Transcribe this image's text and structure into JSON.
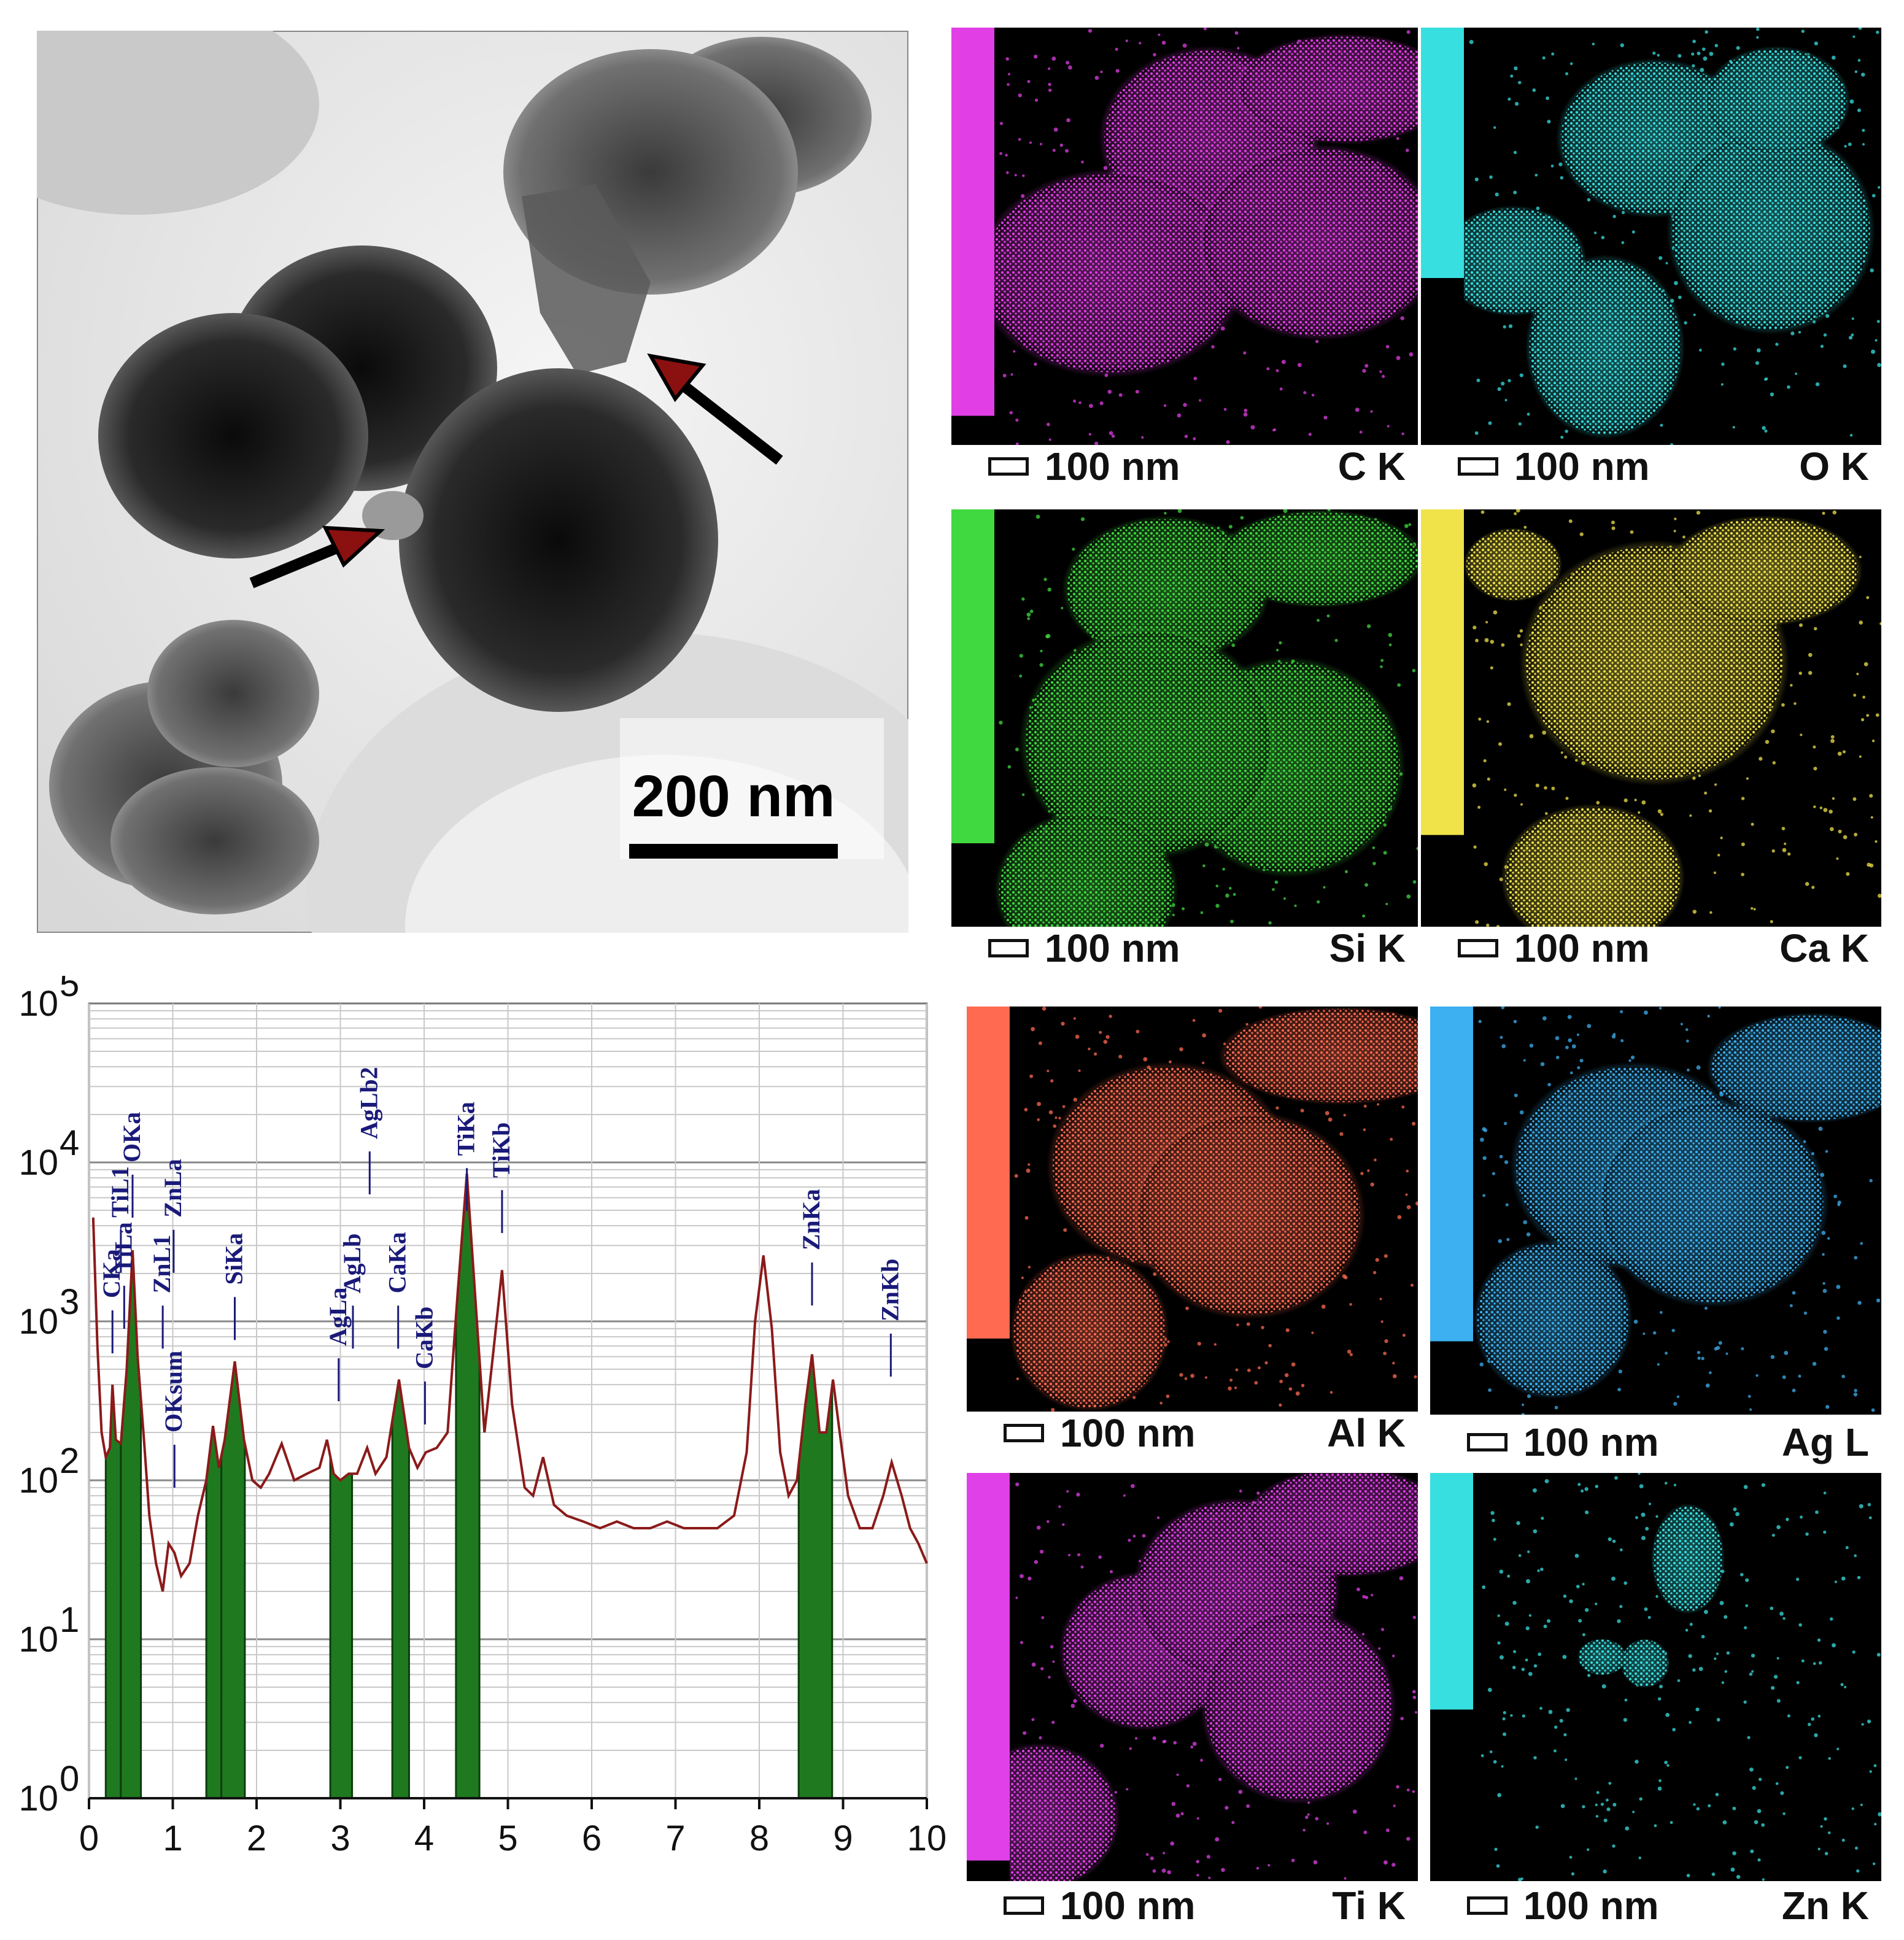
{
  "tem_image": {
    "scale_bar_label": "200 nm"
  },
  "maps": [
    {
      "element": "C K",
      "scale": "100 nm",
      "color": "#e23ee6"
    },
    {
      "element": "O K",
      "scale": "100 nm",
      "color": "#38dfe0"
    },
    {
      "element": "Si K",
      "scale": "100 nm",
      "color": "#40d940"
    },
    {
      "element": "Ca K",
      "scale": "100 nm",
      "color": "#f0e34a"
    },
    {
      "element": "Al K",
      "scale": "100 nm",
      "color": "#ff6a50"
    },
    {
      "element": "Ag L",
      "scale": "100 nm",
      "color": "#3cb0f0"
    },
    {
      "element": "Ti K",
      "scale": "100 nm",
      "color": "#e040e8"
    },
    {
      "element": "Zn K",
      "scale": "100 nm",
      "color": "#38dfe0"
    }
  ],
  "chart_data": {
    "type": "line",
    "xlim": [
      0,
      10
    ],
    "x_ticks": [
      "0",
      "1",
      "2",
      "3",
      "4",
      "5",
      "6",
      "7",
      "8",
      "9",
      "10"
    ],
    "y_scale": "log",
    "ylim": [
      1,
      100000
    ],
    "y_ticks": [
      {
        "base": "10",
        "exp": "0"
      },
      {
        "base": "10",
        "exp": "1"
      },
      {
        "base": "10",
        "exp": "2"
      },
      {
        "base": "10",
        "exp": "3"
      },
      {
        "base": "10",
        "exp": "4"
      },
      {
        "base": "10",
        "exp": "5"
      }
    ],
    "grid": true,
    "line_color": "#8b1a1a",
    "fill_color": "#1f7a1f",
    "spectrum": [
      [
        0.05,
        4500
      ],
      [
        0.1,
        700
      ],
      [
        0.15,
        200
      ],
      [
        0.2,
        140
      ],
      [
        0.25,
        160
      ],
      [
        0.28,
        400
      ],
      [
        0.32,
        180
      ],
      [
        0.38,
        170
      ],
      [
        0.45,
        500
      ],
      [
        0.52,
        2800
      ],
      [
        0.58,
        600
      ],
      [
        0.65,
        200
      ],
      [
        0.72,
        60
      ],
      [
        0.8,
        30
      ],
      [
        0.88,
        20
      ],
      [
        0.95,
        40
      ],
      [
        1.02,
        35
      ],
      [
        1.1,
        25
      ],
      [
        1.2,
        30
      ],
      [
        1.3,
        60
      ],
      [
        1.4,
        100
      ],
      [
        1.48,
        220
      ],
      [
        1.55,
        120
      ],
      [
        1.62,
        180
      ],
      [
        1.74,
        560
      ],
      [
        1.85,
        180
      ],
      [
        1.95,
        100
      ],
      [
        2.05,
        90
      ],
      [
        2.15,
        110
      ],
      [
        2.3,
        170
      ],
      [
        2.45,
        100
      ],
      [
        2.6,
        110
      ],
      [
        2.75,
        120
      ],
      [
        2.84,
        180
      ],
      [
        2.92,
        110
      ],
      [
        3.0,
        100
      ],
      [
        3.1,
        110
      ],
      [
        3.2,
        110
      ],
      [
        3.32,
        160
      ],
      [
        3.42,
        110
      ],
      [
        3.55,
        140
      ],
      [
        3.7,
        430
      ],
      [
        3.82,
        160
      ],
      [
        3.92,
        120
      ],
      [
        4.02,
        150
      ],
      [
        4.15,
        160
      ],
      [
        4.28,
        200
      ],
      [
        4.4,
        1500
      ],
      [
        4.51,
        8500
      ],
      [
        4.62,
        1200
      ],
      [
        4.72,
        200
      ],
      [
        4.82,
        600
      ],
      [
        4.93,
        2100
      ],
      [
        5.05,
        300
      ],
      [
        5.2,
        90
      ],
      [
        5.3,
        80
      ],
      [
        5.42,
        140
      ],
      [
        5.55,
        70
      ],
      [
        5.7,
        60
      ],
      [
        5.9,
        55
      ],
      [
        6.1,
        50
      ],
      [
        6.3,
        55
      ],
      [
        6.5,
        50
      ],
      [
        6.7,
        50
      ],
      [
        6.9,
        55
      ],
      [
        7.1,
        50
      ],
      [
        7.3,
        50
      ],
      [
        7.5,
        50
      ],
      [
        7.7,
        60
      ],
      [
        7.85,
        150
      ],
      [
        7.95,
        1000
      ],
      [
        8.05,
        2600
      ],
      [
        8.15,
        900
      ],
      [
        8.25,
        150
      ],
      [
        8.35,
        80
      ],
      [
        8.45,
        100
      ],
      [
        8.55,
        300
      ],
      [
        8.63,
        620
      ],
      [
        8.72,
        200
      ],
      [
        8.8,
        200
      ],
      [
        8.88,
        430
      ],
      [
        8.96,
        200
      ],
      [
        9.06,
        80
      ],
      [
        9.2,
        50
      ],
      [
        9.35,
        50
      ],
      [
        9.48,
        80
      ],
      [
        9.58,
        130
      ],
      [
        9.7,
        80
      ],
      [
        9.8,
        50
      ],
      [
        9.9,
        40
      ],
      [
        10.0,
        30
      ]
    ],
    "filled_regions": [
      [
        0.2,
        0.38
      ],
      [
        0.38,
        0.62
      ],
      [
        1.4,
        1.58
      ],
      [
        1.58,
        1.86
      ],
      [
        2.88,
        3.14
      ],
      [
        3.62,
        3.82
      ],
      [
        4.38,
        4.66
      ],
      [
        8.47,
        8.87
      ]
    ],
    "peak_labels": [
      {
        "label": "CKa",
        "x": 0.28,
        "y": 1400
      },
      {
        "label": "TiLa",
        "x": 0.42,
        "y": 2000
      },
      {
        "label": "TiL1",
        "x": 0.38,
        "y": 4500
      },
      {
        "label": "OKa",
        "x": 0.52,
        "y": 10000
      },
      {
        "label": "ZnL1",
        "x": 0.88,
        "y": 1500
      },
      {
        "label": "ZnLa",
        "x": 1.01,
        "y": 4500
      },
      {
        "label": "OKsum",
        "x": 1.02,
        "y": 200
      },
      {
        "label": "SiKa",
        "x": 1.74,
        "y": 1700
      },
      {
        "label": "AgLa",
        "x": 2.98,
        "y": 700
      },
      {
        "label": "AgLb",
        "x": 3.15,
        "y": 1500
      },
      {
        "label": "AgLb2",
        "x": 3.35,
        "y": 14000
      },
      {
        "label": "CaKa",
        "x": 3.69,
        "y": 1500
      },
      {
        "label": "CaKb",
        "x": 4.01,
        "y": 500
      },
      {
        "label": "TiKa",
        "x": 4.51,
        "y": 11000
      },
      {
        "label": "TiKb",
        "x": 4.93,
        "y": 8000
      },
      {
        "label": "ZnKa",
        "x": 8.63,
        "y": 2800
      },
      {
        "label": "ZnKb",
        "x": 9.57,
        "y": 1000
      }
    ]
  }
}
